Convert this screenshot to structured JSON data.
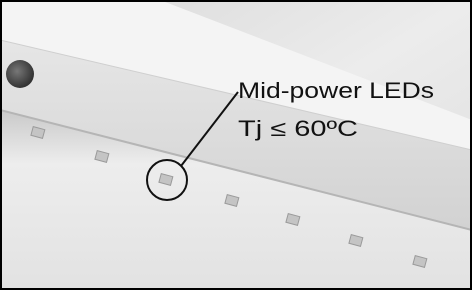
{
  "annotation": {
    "lines": [
      "Mid-power LEDs",
      "Tj ≤ 60ºC"
    ]
  }
}
